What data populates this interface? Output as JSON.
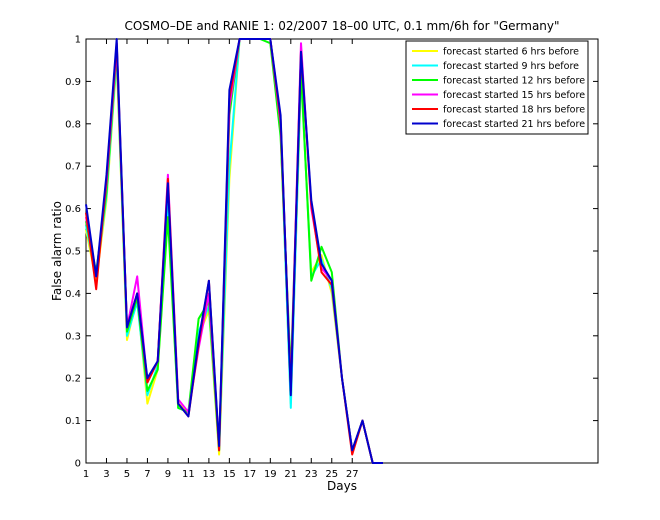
{
  "chart_data": {
    "type": "line",
    "title": "COSMO–DE and RANIE 1: 02/2007 18–00 UTC, 0.1 mm/6h for \"Germany\"",
    "xlabel": "Days",
    "ylabel": "False alarm ratio",
    "xlim": [
      1,
      51
    ],
    "ylim": [
      0,
      1
    ],
    "xticks": [
      "1",
      "3",
      "5",
      "7",
      "9",
      "11",
      "13",
      "15",
      "17",
      "19",
      "21",
      "23",
      "25",
      "27"
    ],
    "yticks": [
      "0",
      "0.1",
      "0.2",
      "0.3",
      "0.4",
      "0.5",
      "0.6",
      "0.7",
      "0.8",
      "0.9",
      "1"
    ],
    "grid": false,
    "legend_position": "top-right",
    "series": [
      {
        "name": "forecast started 6 hrs before",
        "color": "#ffff00",
        "x": [
          1,
          2,
          3,
          4,
          5,
          6,
          7,
          8,
          9,
          10,
          11,
          12,
          13,
          14,
          15,
          16,
          17,
          18,
          19,
          20,
          21,
          22,
          23,
          24,
          25,
          26,
          27,
          28,
          29,
          30
        ],
        "y": [
          0.55,
          0.43,
          0.62,
          0.95,
          0.29,
          0.39,
          0.14,
          0.22,
          0.6,
          0.14,
          0.12,
          0.3,
          0.36,
          0.02,
          0.67,
          1.0,
          1.0,
          1.0,
          1.0,
          0.78,
          0.14,
          0.91,
          0.45,
          0.49,
          0.4,
          0.2,
          0.03,
          0.1,
          0.0,
          0.0
        ]
      },
      {
        "name": "forecast started 9 hrs before",
        "color": "#00ffff",
        "x": [
          1,
          2,
          3,
          4,
          5,
          6,
          7,
          8,
          9,
          10,
          11,
          12,
          13,
          14,
          15,
          16,
          17,
          18,
          19,
          20,
          21,
          22,
          23,
          24,
          25,
          26,
          27,
          28,
          29,
          30
        ],
        "y": [
          0.56,
          0.44,
          0.63,
          0.96,
          0.3,
          0.38,
          0.16,
          0.23,
          0.61,
          0.13,
          0.12,
          0.31,
          0.37,
          0.03,
          0.7,
          1.0,
          1.0,
          1.0,
          1.0,
          0.79,
          0.13,
          0.92,
          0.44,
          0.48,
          0.41,
          0.2,
          0.03,
          0.1,
          0.0,
          0.0
        ]
      },
      {
        "name": "forecast started 12 hrs before",
        "color": "#00ff00",
        "x": [
          1,
          2,
          3,
          4,
          5,
          6,
          7,
          8,
          9,
          10,
          11,
          12,
          13,
          14,
          15,
          16,
          17,
          18,
          19,
          20,
          21,
          22,
          23,
          24,
          25,
          26,
          27,
          28,
          29,
          30
        ],
        "y": [
          0.57,
          0.45,
          0.64,
          0.97,
          0.31,
          0.39,
          0.17,
          0.22,
          0.58,
          0.13,
          0.12,
          0.34,
          0.38,
          0.03,
          0.82,
          1.0,
          1.0,
          1.0,
          0.99,
          0.77,
          0.21,
          0.93,
          0.43,
          0.51,
          0.45,
          0.2,
          0.03,
          0.1,
          0.0,
          0.0
        ]
      },
      {
        "name": "forecast started 15 hrs before",
        "color": "#ff00ff",
        "x": [
          1,
          2,
          3,
          4,
          5,
          6,
          7,
          8,
          9,
          10,
          11,
          12,
          13,
          14,
          15,
          16,
          17,
          18,
          19,
          20,
          21,
          22,
          23,
          24,
          25,
          26,
          27,
          28,
          29,
          30
        ],
        "y": [
          0.58,
          0.44,
          0.66,
          0.98,
          0.32,
          0.44,
          0.19,
          0.24,
          0.68,
          0.15,
          0.12,
          0.27,
          0.4,
          0.04,
          0.84,
          1.0,
          1.0,
          1.0,
          1.0,
          0.8,
          0.18,
          0.99,
          0.6,
          0.46,
          0.43,
          0.2,
          0.03,
          0.1,
          0.0,
          0.0
        ]
      },
      {
        "name": "forecast started 18 hrs before",
        "color": "#ff0000",
        "x": [
          1,
          2,
          3,
          4,
          5,
          6,
          7,
          8,
          9,
          10,
          11,
          12,
          13,
          14,
          15,
          16,
          17,
          18,
          19,
          20,
          21,
          22,
          23,
          24,
          25,
          26,
          27,
          28,
          29,
          30
        ],
        "y": [
          0.59,
          0.41,
          0.67,
          0.99,
          0.32,
          0.4,
          0.19,
          0.24,
          0.67,
          0.14,
          0.11,
          0.28,
          0.43,
          0.03,
          0.86,
          1.0,
          1.0,
          1.0,
          1.0,
          0.81,
          0.17,
          0.97,
          0.61,
          0.45,
          0.42,
          0.2,
          0.02,
          0.1,
          0.0,
          0.0
        ]
      },
      {
        "name": "forecast started 21 hrs before",
        "color": "#0000cd",
        "x": [
          1,
          2,
          3,
          4,
          5,
          6,
          7,
          8,
          9,
          10,
          11,
          12,
          13,
          14,
          15,
          16,
          17,
          18,
          19,
          20,
          21,
          22,
          23,
          24,
          25,
          26,
          27,
          28,
          29,
          30
        ],
        "y": [
          0.61,
          0.44,
          0.68,
          1.0,
          0.32,
          0.4,
          0.2,
          0.24,
          0.66,
          0.14,
          0.11,
          0.29,
          0.43,
          0.04,
          0.88,
          1.0,
          1.0,
          1.0,
          1.0,
          0.82,
          0.16,
          0.97,
          0.62,
          0.47,
          0.43,
          0.2,
          0.03,
          0.1,
          0.0,
          0.0
        ]
      }
    ]
  }
}
